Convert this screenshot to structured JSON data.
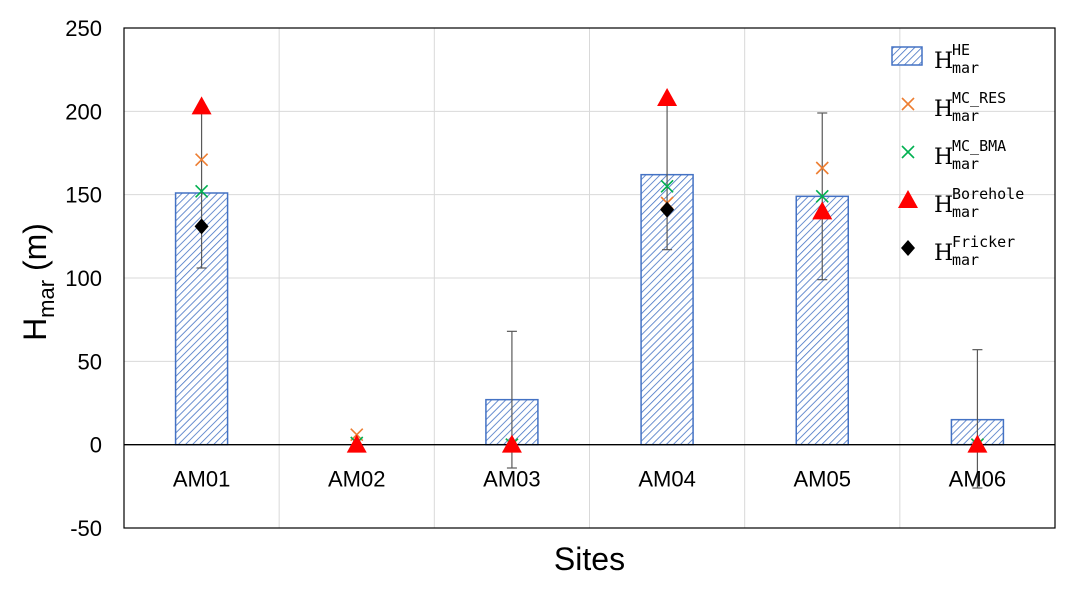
{
  "chart_data": {
    "type": "bar",
    "xlabel": "Sites",
    "ylabel": "H",
    "ylabel_sub": "mar",
    "ylabel_unit": " (m)",
    "ylim": [
      -50,
      250
    ],
    "yticks": [
      -50,
      0,
      50,
      100,
      150,
      200,
      250
    ],
    "ytick_labels": [
      "-50",
      "0",
      "50",
      "100",
      "150",
      "200",
      "250"
    ],
    "grid": true,
    "legend_position": "top-right",
    "categories": [
      "AM01",
      "AM02",
      "AM03",
      "AM04",
      "AM05",
      "AM06"
    ],
    "series": [
      {
        "name": "H_mar^HE",
        "base": "H",
        "sup": "HE",
        "sub": "mar",
        "kind": "bar",
        "color": "#4472c4",
        "values": [
          151,
          0,
          27,
          162,
          149,
          15
        ],
        "error_low": [
          106,
          null,
          -14,
          117,
          99,
          -26
        ],
        "error_high": [
          200,
          null,
          68,
          206,
          199,
          57
        ]
      },
      {
        "name": "H_mar^MC_RES",
        "base": "H",
        "sup": "MC_RES",
        "sub": "mar",
        "kind": "marker",
        "marker": "x",
        "color": "#ed7d31",
        "values": [
          171,
          6,
          0,
          145,
          166,
          0
        ]
      },
      {
        "name": "H_mar^MC_BMA",
        "base": "H",
        "sup": "MC_BMA",
        "sub": "mar",
        "kind": "marker",
        "marker": "x",
        "color": "#00b050",
        "values": [
          152,
          1,
          0,
          155,
          149,
          0
        ]
      },
      {
        "name": "H_mar^Borehole",
        "base": "H",
        "sup": "Borehole",
        "sub": "mar",
        "kind": "marker",
        "marker": "triangle",
        "color": "#ff0000",
        "values": [
          203,
          0,
          0,
          208,
          140,
          0
        ]
      },
      {
        "name": "H_mar^Fricker",
        "base": "H",
        "sup": "Fricker",
        "sub": "mar",
        "kind": "marker",
        "marker": "diamond",
        "color": "#000000",
        "values": [
          131,
          null,
          null,
          141,
          null,
          null
        ]
      }
    ]
  }
}
